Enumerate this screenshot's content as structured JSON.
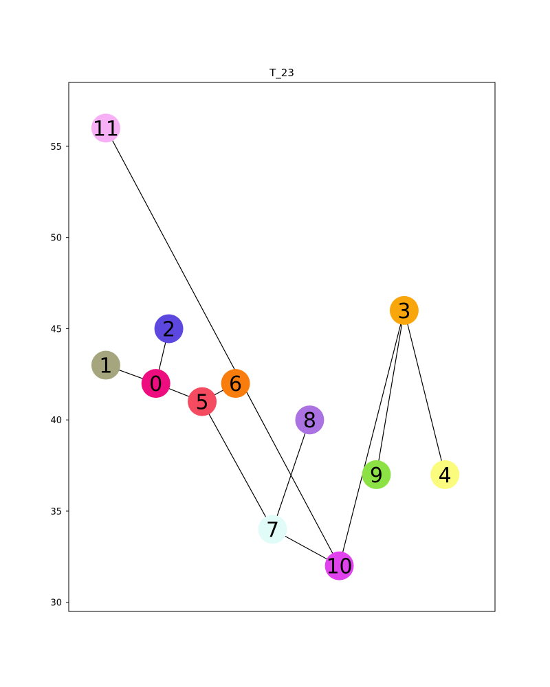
{
  "title": "T_23",
  "graph": {
    "y_axis": {
      "ylim": [
        29.5,
        58.5
      ],
      "ticks": [
        30,
        35,
        40,
        45,
        50,
        55
      ],
      "tick_labels": [
        "30",
        "35",
        "40",
        "45",
        "50",
        "55"
      ]
    },
    "x_axis": {
      "xlim": [
        -1.0,
        10.5
      ],
      "ticks_visible": false
    },
    "nodes": [
      {
        "id": "0",
        "x": 1.35,
        "y": 42.0,
        "color": "#ee0d7e"
      },
      {
        "id": "1",
        "x": 0.0,
        "y": 43.0,
        "color": "#a6a67e"
      },
      {
        "id": "2",
        "x": 1.7,
        "y": 45.0,
        "color": "#5c47df"
      },
      {
        "id": "3",
        "x": 8.05,
        "y": 46.0,
        "color": "#f9a60d"
      },
      {
        "id": "4",
        "x": 9.15,
        "y": 37.0,
        "color": "#fbfb7e"
      },
      {
        "id": "5",
        "x": 2.6,
        "y": 41.0,
        "color": "#f44b61"
      },
      {
        "id": "6",
        "x": 3.5,
        "y": 42.0,
        "color": "#f97d0d"
      },
      {
        "id": "7",
        "x": 4.5,
        "y": 34.0,
        "color": "#e1fbf9"
      },
      {
        "id": "8",
        "x": 5.5,
        "y": 40.0,
        "color": "#ab72e1"
      },
      {
        "id": "9",
        "x": 7.3,
        "y": 37.0,
        "color": "#8ce245"
      },
      {
        "id": "10",
        "x": 6.3,
        "y": 32.0,
        "color": "#e043ed"
      },
      {
        "id": "11",
        "x": 0.0,
        "y": 56.0,
        "color": "#f7b0f6"
      }
    ],
    "edges": [
      [
        "1",
        "0"
      ],
      [
        "0",
        "2"
      ],
      [
        "0",
        "5"
      ],
      [
        "5",
        "6"
      ],
      [
        "5",
        "7"
      ],
      [
        "7",
        "8"
      ],
      [
        "7",
        "10"
      ],
      [
        "11",
        "10"
      ],
      [
        "10",
        "3"
      ],
      [
        "3",
        "9"
      ],
      [
        "3",
        "4"
      ]
    ]
  }
}
